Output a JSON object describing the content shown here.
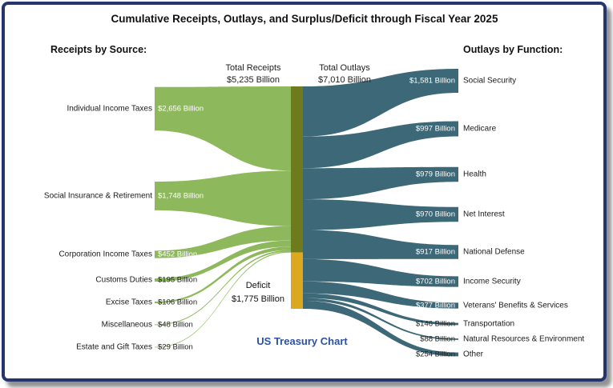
{
  "title": "Cumulative Receipts, Outlays, and Surplus/Deficit through Fiscal Year 2025",
  "left_header": "Receipts by Source:",
  "right_header": "Outlays by Function:",
  "totals": {
    "receipts_label": "Total Receipts",
    "receipts_value": "$5,235 Billion",
    "outlays_label": "Total Outlays",
    "outlays_value": "$7,010 Billion"
  },
  "deficit": {
    "label": "Deficit",
    "value": "$1,775 Billion"
  },
  "watermark": "US Treasury Chart",
  "colors": {
    "receipts_flow": "#8eb85c",
    "outlays_flow": "#3c6877",
    "bar_receipts": "#6e7a1b",
    "bar_deficit": "#dca81f",
    "watermark_text": "#2b52a3",
    "frame_border": "#25356e"
  },
  "chart_data": {
    "type": "sankey",
    "unit": "Billions of USD",
    "total_receipts": 5235,
    "total_outlays": 7010,
    "deficit": 1775,
    "receipts": [
      {
        "label": "Individual Income Taxes",
        "value": 2656,
        "value_label": "$2,656 Billion"
      },
      {
        "label": "Social Insurance & Retirement",
        "value": 1748,
        "value_label": "$1,748 Billion"
      },
      {
        "label": "Corporation Income Taxes",
        "value": 452,
        "value_label": "$452 Billion"
      },
      {
        "label": "Customs Duties",
        "value": 195,
        "value_label": "$195 Billion"
      },
      {
        "label": "Excise Taxes",
        "value": 106,
        "value_label": "$106 Billion"
      },
      {
        "label": "Miscellaneous",
        "value": 48,
        "value_label": "$48 Billion"
      },
      {
        "label": "Estate and Gift Taxes",
        "value": 29,
        "value_label": "$29 Billion"
      }
    ],
    "outlays": [
      {
        "label": "Social Security",
        "value": 1581,
        "value_label": "$1,581 Billion"
      },
      {
        "label": "Medicare",
        "value": 997,
        "value_label": "$997 Billion"
      },
      {
        "label": "Health",
        "value": 979,
        "value_label": "$979 Billion"
      },
      {
        "label": "Net Interest",
        "value": 970,
        "value_label": "$970 Billion"
      },
      {
        "label": "National Defense",
        "value": 917,
        "value_label": "$917 Billion"
      },
      {
        "label": "Income Security",
        "value": 702,
        "value_label": "$702 Billion"
      },
      {
        "label": "Veterans' Benefits & Services",
        "value": 377,
        "value_label": "$377 Billion"
      },
      {
        "label": "Transportation",
        "value": 146,
        "value_label": "$146 Billion"
      },
      {
        "label": "Natural Resources & Environment",
        "value": 88,
        "value_label": "$88 Billion"
      },
      {
        "label": "Other",
        "value": 254,
        "value_label": "$254 Billion"
      }
    ]
  }
}
